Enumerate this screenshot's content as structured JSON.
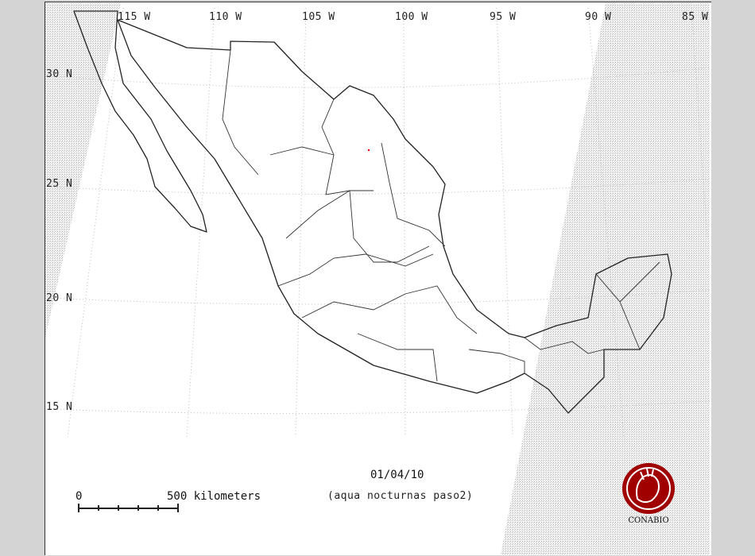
{
  "map": {
    "longitude_labels": [
      "115 W",
      "110 W",
      "105 W",
      "100 W",
      "95 W",
      "90 W",
      "85 W"
    ],
    "latitude_labels": [
      "30 N",
      "25 N",
      "20 N",
      "15 N"
    ],
    "date": "01/04/10",
    "subtitle": "(aqua nocturnas paso2)",
    "scale_bar": {
      "start_label": "0",
      "end_label": "500 kilometers"
    },
    "logo_text": "CONABIO",
    "colors": {
      "outline": "#222222",
      "logo": "#a00000",
      "no_data": "#c8c8c8",
      "hotspot": "#ff0000"
    },
    "hotspots": [
      {
        "lon": -101.3,
        "lat": 27.1
      }
    ]
  }
}
